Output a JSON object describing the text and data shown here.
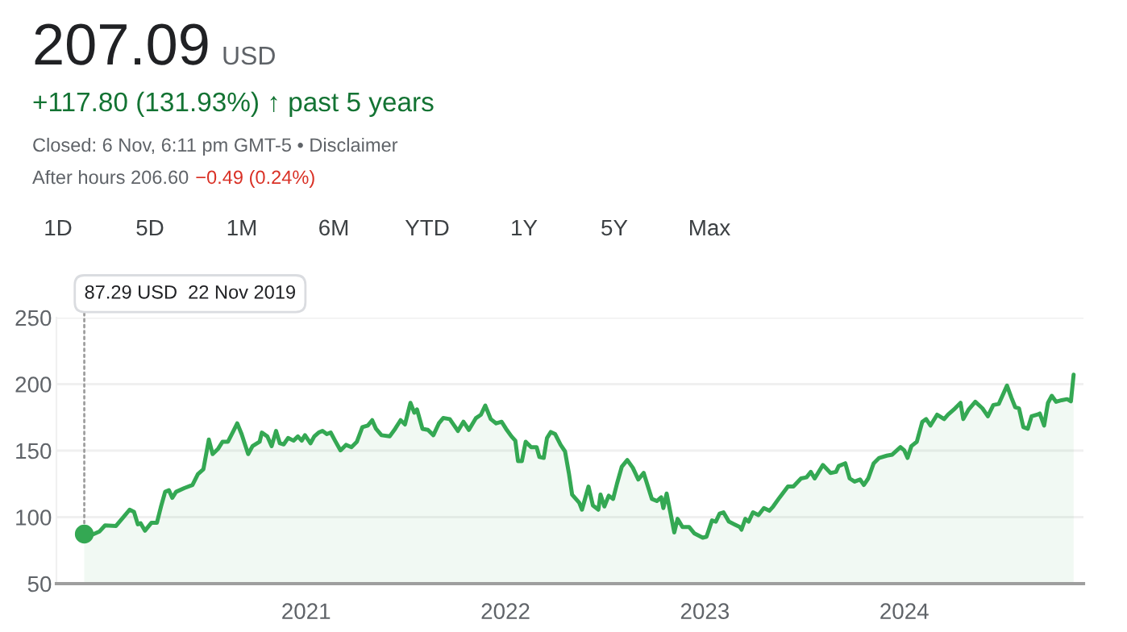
{
  "chart_data": {
    "type": "area",
    "title": "207.09",
    "subtitle": "+117.80 (131.93%) ↑ past 5 years",
    "annotations": [
      "USD",
      "Closed: 6 Nov, 6:11 pm GMT-5 • Disclaimer",
      "After hours 206.60",
      "−0.49 (0.24%)",
      "1D",
      "5D",
      "1M",
      "6M",
      "YTD",
      "1Y",
      "5Y",
      "Max",
      {
        "text": "87.29 USD  22 Nov 2019",
        "x": "2019-11-22",
        "y": 87.29
      }
    ],
    "xlim": [
      "2019-10-02",
      "2024-11-24"
    ],
    "ylim": [
      50,
      250
    ],
    "xticks": [
      {
        "value": "2021-01-01",
        "label": "2021"
      },
      {
        "value": "2022-01-01",
        "label": "2022"
      },
      {
        "value": "2023-01-01",
        "label": "2023"
      },
      {
        "value": "2024-01-01",
        "label": "2024"
      }
    ],
    "yticks": [
      50,
      100,
      150,
      200,
      250
    ],
    "grid": "y",
    "series": [
      {
        "color": "#34a853",
        "x": [
          "2019-11-22",
          "2019-12-05",
          "2019-12-20",
          "2019-12-30",
          "2020-01-19",
          "2020-02-03",
          "2020-02-13",
          "2020-02-21",
          "2020-02-28",
          "2020-03-04",
          "2020-03-12",
          "2020-03-24",
          "2020-04-03",
          "2020-04-11",
          "2020-04-18",
          "2020-04-25",
          "2020-05-01",
          "2020-05-08",
          "2020-05-23",
          "2020-06-07",
          "2020-06-17",
          "2020-06-27",
          "2020-07-07",
          "2020-07-14",
          "2020-07-24",
          "2020-08-01",
          "2020-08-11",
          "2020-08-21",
          "2020-08-28",
          "2020-09-05",
          "2020-09-17",
          "2020-09-25",
          "2020-10-08",
          "2020-10-12",
          "2020-10-22",
          "2020-10-30",
          "2020-11-07",
          "2020-11-14",
          "2020-11-21",
          "2020-11-29",
          "2020-12-09",
          "2020-12-17",
          "2020-12-24",
          "2020-12-30",
          "2021-01-09",
          "2021-01-16",
          "2021-01-24",
          "2021-01-31",
          "2021-02-08",
          "2021-02-15",
          "2021-02-23",
          "2021-03-05",
          "2021-03-15",
          "2021-03-25",
          "2021-04-04",
          "2021-04-14",
          "2021-04-24",
          "2021-05-02",
          "2021-05-09",
          "2021-05-19",
          "2021-06-03",
          "2021-06-13",
          "2021-06-23",
          "2021-07-01",
          "2021-07-11",
          "2021-07-18",
          "2021-07-23",
          "2021-08-02",
          "2021-08-12",
          "2021-08-22",
          "2021-09-01",
          "2021-09-09",
          "2021-09-21",
          "2021-10-06",
          "2021-10-16",
          "2021-10-26",
          "2021-11-08",
          "2021-11-17",
          "2021-11-25",
          "2021-12-05",
          "2021-12-15",
          "2021-12-25",
          "2022-01-02",
          "2022-01-12",
          "2022-01-19",
          "2022-01-24",
          "2022-01-31",
          "2022-02-07",
          "2022-02-17",
          "2022-02-27",
          "2022-03-04",
          "2022-03-12",
          "2022-03-18",
          "2022-03-25",
          "2022-04-02",
          "2022-04-12",
          "2022-04-20",
          "2022-04-27",
          "2022-05-03",
          "2022-05-16",
          "2022-05-21",
          "2022-06-02",
          "2022-06-10",
          "2022-06-20",
          "2022-06-24",
          "2022-07-01",
          "2022-07-09",
          "2022-07-17",
          "2022-07-24",
          "2022-08-02",
          "2022-08-12",
          "2022-08-22",
          "2022-09-01",
          "2022-09-11",
          "2022-09-26",
          "2022-10-05",
          "2022-10-13",
          "2022-10-17",
          "2022-10-23",
          "2022-11-06",
          "2022-11-12",
          "2022-11-21",
          "2022-12-03",
          "2022-12-13",
          "2022-12-28",
          "2023-01-04",
          "2023-01-14",
          "2023-01-21",
          "2023-01-28",
          "2023-02-04",
          "2023-02-14",
          "2023-02-24",
          "2023-03-06",
          "2023-03-09",
          "2023-03-16",
          "2023-03-22",
          "2023-03-30",
          "2023-04-09",
          "2023-04-19",
          "2023-04-29",
          "2023-05-06",
          "2023-05-18",
          "2023-06-02",
          "2023-06-12",
          "2023-06-26",
          "2023-07-06",
          "2023-07-14",
          "2023-07-21",
          "2023-08-05",
          "2023-08-19",
          "2023-08-29",
          "2023-09-03",
          "2023-09-15",
          "2023-09-23",
          "2023-10-02",
          "2023-10-12",
          "2023-10-19",
          "2023-10-27",
          "2023-11-06",
          "2023-11-16",
          "2023-11-30",
          "2023-12-10",
          "2023-12-25",
          "2024-01-01",
          "2024-01-07",
          "2024-01-14",
          "2024-01-24",
          "2024-02-03",
          "2024-02-10",
          "2024-02-18",
          "2024-03-01",
          "2024-03-14",
          "2024-03-21",
          "2024-04-03",
          "2024-04-13",
          "2024-04-18",
          "2024-04-28",
          "2024-05-10",
          "2024-05-23",
          "2024-06-02",
          "2024-06-12",
          "2024-06-22",
          "2024-07-07",
          "2024-07-15",
          "2024-07-22",
          "2024-07-29",
          "2024-08-06",
          "2024-08-14",
          "2024-08-21",
          "2024-08-31",
          "2024-09-05",
          "2024-09-13",
          "2024-09-20",
          "2024-09-27",
          "2024-10-05",
          "2024-10-15",
          "2024-10-25",
          "2024-11-01",
          "2024-11-06"
        ],
        "values": [
          87.29,
          86.5,
          89.3,
          93.8,
          93.4,
          100.7,
          105.6,
          104.0,
          94.6,
          95.4,
          89.8,
          95.8,
          95.8,
          108.8,
          119.0,
          120.2,
          114.5,
          119.0,
          121.8,
          124.2,
          132.4,
          136.0,
          158.3,
          147.4,
          151.4,
          156.7,
          156.7,
          164.8,
          170.5,
          162.4,
          147.4,
          153.4,
          156.7,
          163.6,
          160.7,
          153.4,
          164.8,
          155.5,
          154.7,
          159.5,
          157.5,
          160.7,
          157.5,
          161.6,
          155.5,
          160.7,
          163.6,
          164.8,
          162.4,
          163.6,
          157.5,
          150.2,
          154.3,
          152.6,
          156.7,
          167.6,
          168.9,
          172.9,
          166.4,
          161.6,
          160.7,
          166.4,
          172.9,
          169.7,
          185.9,
          178.6,
          181.0,
          166.4,
          165.6,
          161.6,
          170.5,
          174.5,
          173.7,
          164.8,
          171.7,
          165.6,
          174.5,
          177.0,
          183.9,
          173.7,
          170.5,
          171.7,
          166.4,
          160.7,
          157.5,
          142.1,
          142.1,
          156.7,
          152.6,
          152.6,
          145.3,
          144.5,
          159.5,
          164.0,
          162.4,
          154.3,
          149.4,
          133.2,
          116.9,
          110.8,
          105.6,
          123.0,
          108.8,
          105.6,
          117.0,
          108.0,
          116.1,
          113.7,
          125.0,
          138.0,
          142.9,
          137.2,
          128.3,
          133.2,
          113.7,
          112.1,
          114.9,
          106.8,
          117.7,
          88.5,
          98.7,
          92.6,
          92.6,
          87.7,
          84.5,
          85.3,
          97.5,
          96.6,
          102.7,
          103.6,
          96.6,
          94.6,
          92.6,
          90.6,
          98.7,
          96.6,
          103.6,
          101.5,
          106.8,
          104.8,
          108.0,
          114.9,
          123.0,
          123.0,
          129.1,
          129.9,
          134.0,
          129.1,
          139.2,
          133.2,
          134.0,
          138.4,
          140.5,
          129.1,
          126.7,
          128.3,
          124.2,
          129.1,
          140.5,
          144.5,
          146.2,
          147.0,
          152.6,
          150.2,
          144.5,
          153.4,
          156.7,
          171.7,
          173.7,
          168.9,
          177.0,
          173.7,
          177.0,
          181.8,
          185.9,
          173.7,
          181.0,
          186.7,
          181.8,
          175.8,
          184.3,
          185.1,
          198.9,
          189.9,
          182.7,
          181.8,
          167.6,
          166.4,
          175.8,
          177.0,
          177.9,
          168.9,
          185.9,
          191.2,
          186.7,
          187.9,
          188.7,
          187.1,
          207.09
        ]
      },
      {
        "type": "scatter",
        "color": "#34a853",
        "marker": "circle",
        "x": [
          "2019-11-22"
        ],
        "values": [
          87.29
        ]
      }
    ]
  }
}
